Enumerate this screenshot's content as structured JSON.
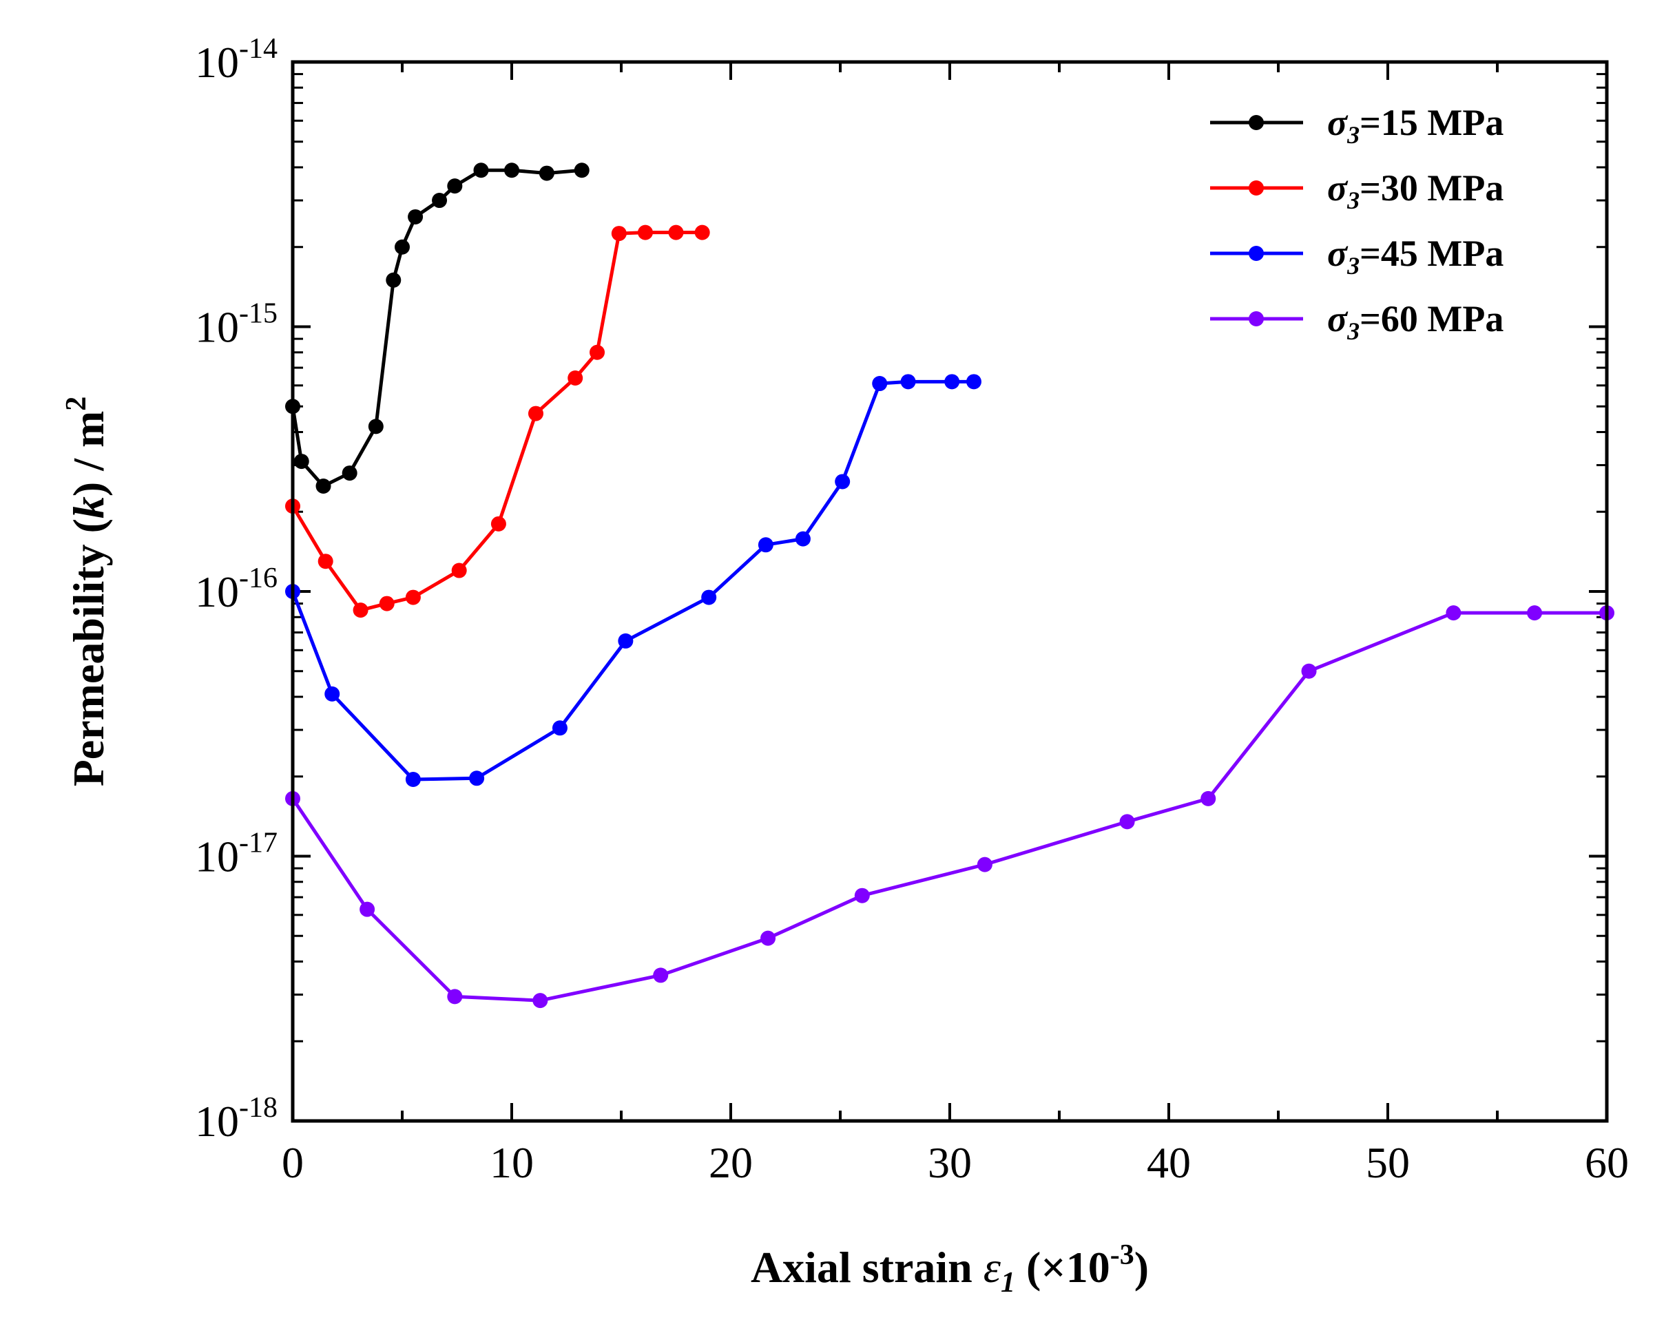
{
  "chart_data": {
    "type": "line",
    "title": "",
    "xlabel": {
      "main": "Axial strain ",
      "symbol": "ε",
      "symbol_sub": "1",
      "unit_prefix": " (×10",
      "unit_exp": "-3",
      "unit_suffix": ")"
    },
    "ylabel": {
      "main": "Permeability (",
      "symbol": "k",
      "unit_prefix": ") / m",
      "unit_exp": "2"
    },
    "xlim": [
      0,
      60
    ],
    "ylim": [
      1e-18,
      1e-14
    ],
    "yscale": "log",
    "xticks": [
      "0",
      "10",
      "20",
      "30",
      "40",
      "50",
      "60"
    ],
    "yticks": [
      {
        "base": "10",
        "exp": "-14"
      },
      {
        "base": "10",
        "exp": "-15"
      },
      {
        "base": "10",
        "exp": "-16"
      },
      {
        "base": "10",
        "exp": "-17"
      },
      {
        "base": "10",
        "exp": "-18"
      }
    ],
    "grid": false,
    "legend_position": "top-right",
    "series": [
      {
        "name": "σ3=15 MPa",
        "name_parts": {
          "sym": "σ",
          "sub": "3",
          "rest": "=15 MPa"
        },
        "color": "#000000",
        "x": [
          0.0,
          0.4,
          1.4,
          2.6,
          3.8,
          4.6,
          5.0,
          5.6,
          6.7,
          7.4,
          8.6,
          10.0,
          11.6,
          13.2
        ],
        "y": [
          5e-16,
          3.1e-16,
          2.5e-16,
          2.8e-16,
          4.2e-16,
          1.5e-15,
          2e-15,
          2.6e-15,
          3e-15,
          3.4e-15,
          3.9e-15,
          3.9e-15,
          3.8e-15,
          3.9e-15
        ]
      },
      {
        "name": "σ3=30 MPa",
        "name_parts": {
          "sym": "σ",
          "sub": "3",
          "rest": "=30 MPa"
        },
        "color": "#ff0000",
        "x": [
          0.0,
          1.5,
          3.1,
          4.3,
          5.5,
          7.6,
          9.4,
          11.1,
          12.9,
          13.9,
          14.9,
          16.1,
          17.5,
          18.7
        ],
        "y": [
          2.1e-16,
          1.3e-16,
          8.5e-17,
          9e-17,
          9.5e-17,
          1.2e-16,
          1.8e-16,
          4.7e-16,
          6.4e-16,
          8e-16,
          2.25e-15,
          2.27e-15,
          2.27e-15,
          2.27e-15
        ]
      },
      {
        "name": "σ3=45 MPa",
        "name_parts": {
          "sym": "σ",
          "sub": "3",
          "rest": "=45 MPa"
        },
        "color": "#0000ff",
        "x": [
          0.0,
          1.8,
          5.5,
          8.4,
          12.2,
          15.2,
          19.0,
          21.6,
          23.3,
          25.1,
          26.8,
          28.1,
          30.1,
          31.1
        ],
        "y": [
          1e-16,
          4.1e-17,
          1.95e-17,
          1.97e-17,
          3.05e-17,
          6.5e-17,
          9.5e-17,
          1.5e-16,
          1.58e-16,
          2.6e-16,
          6.1e-16,
          6.2e-16,
          6.2e-16,
          6.2e-16
        ]
      },
      {
        "name": "σ3=60 MPa",
        "name_parts": {
          "sym": "σ",
          "sub": "3",
          "rest": "=60 MPa"
        },
        "color": "#8000ff",
        "x": [
          0.0,
          3.4,
          7.4,
          11.3,
          16.8,
          21.7,
          26.0,
          31.6,
          38.1,
          41.8,
          46.4,
          53.0,
          56.7,
          60.0
        ],
        "y": [
          1.65e-17,
          6.3e-18,
          2.95e-18,
          2.85e-18,
          3.55e-18,
          4.9e-18,
          7.1e-18,
          9.3e-18,
          1.35e-17,
          1.65e-17,
          5e-17,
          8.3e-17,
          8.3e-17,
          8.3e-17
        ]
      }
    ]
  }
}
